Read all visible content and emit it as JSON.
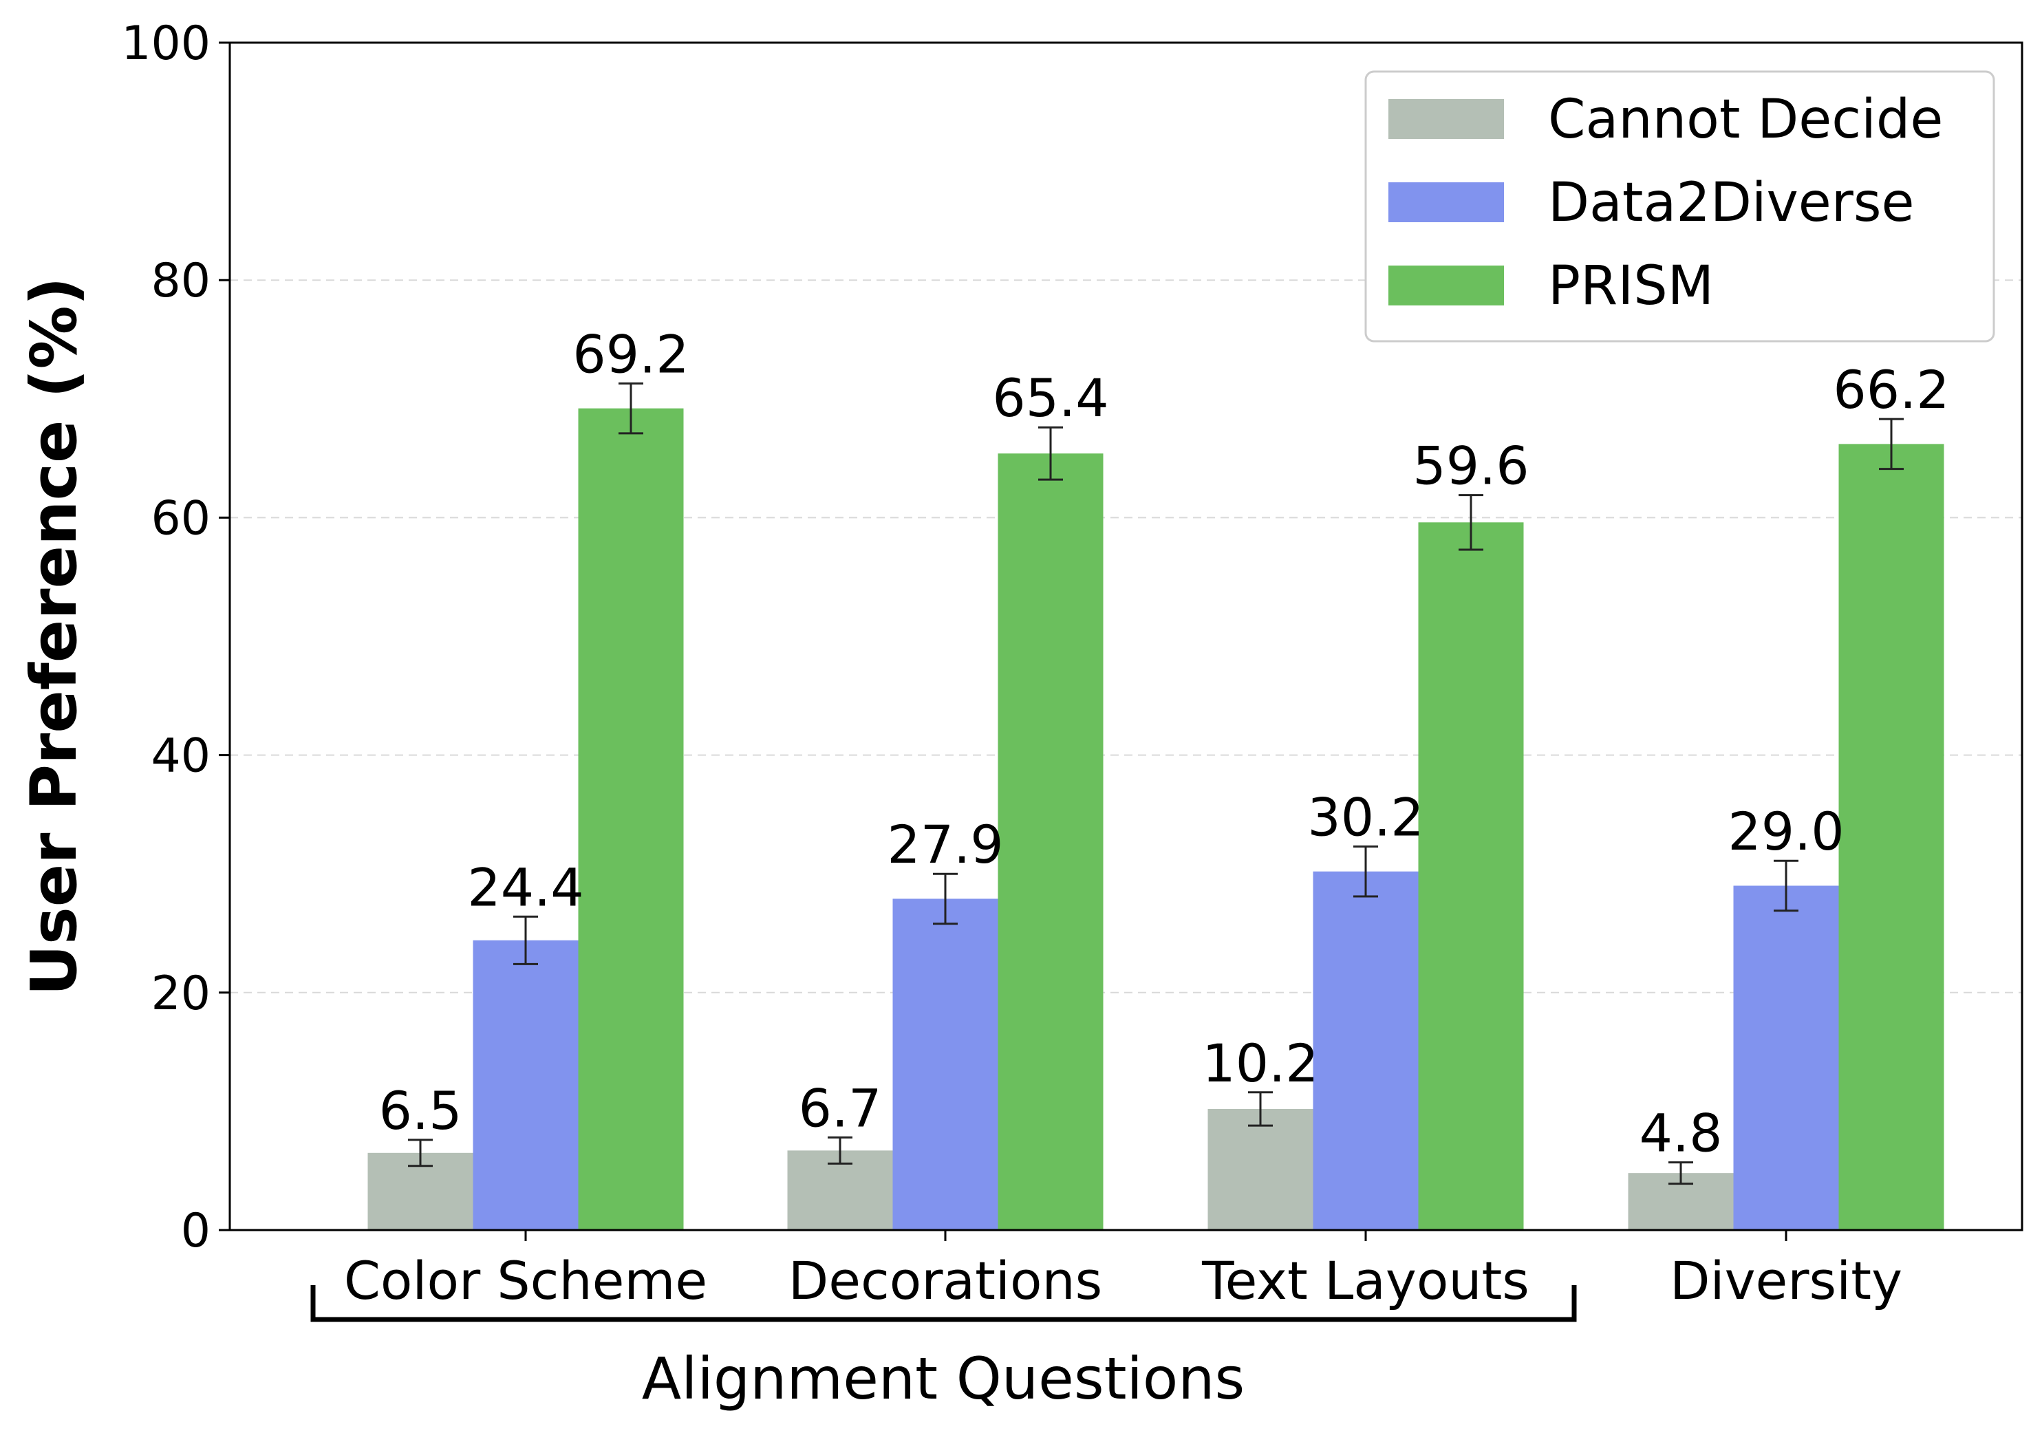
{
  "chart_data": {
    "type": "bar",
    "categories": [
      "Color Scheme",
      "Decorations",
      "Text Layouts",
      "Diversity"
    ],
    "series": [
      {
        "name": "Cannot Decide",
        "color": "#b4bfb5",
        "values": [
          6.5,
          6.7,
          10.2,
          4.8
        ],
        "errors": [
          1.1,
          1.1,
          1.4,
          0.9
        ]
      },
      {
        "name": "Data2Diverse",
        "color": "#8193ee",
        "values": [
          24.4,
          27.9,
          30.2,
          29.0
        ],
        "errors": [
          2.0,
          2.1,
          2.1,
          2.1
        ]
      },
      {
        "name": "PRISM",
        "color": "#6bbf5d",
        "values": [
          69.2,
          65.4,
          59.6,
          66.2
        ],
        "errors": [
          2.1,
          2.2,
          2.3,
          2.1
        ]
      }
    ],
    "value_labels": [
      [
        "6.5",
        "6.7",
        "10.2",
        "4.8"
      ],
      [
        "24.4",
        "27.9",
        "30.2",
        "29.0"
      ],
      [
        "69.2",
        "65.4",
        "59.6",
        "66.2"
      ]
    ],
    "ylabel": "User Preference (%)",
    "xlabel": "",
    "ylim": [
      0,
      100
    ],
    "yticks": [
      0,
      20,
      40,
      60,
      80,
      100
    ],
    "ytick_labels": [
      "0",
      "20",
      "40",
      "60",
      "80",
      "100"
    ],
    "grid": true,
    "legend_position": "top-right",
    "group_bracket": {
      "label": "Alignment Questions",
      "from": "Color Scheme",
      "to": "Text Layouts"
    }
  }
}
